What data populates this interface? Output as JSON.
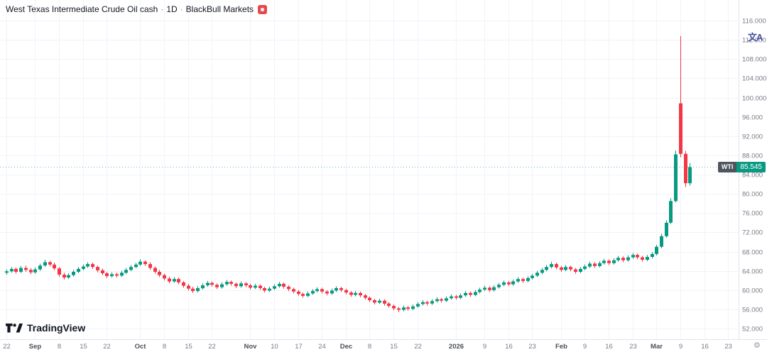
{
  "header": {
    "symbol": "West Texas Intermediate Crude Oil cash",
    "interval": "1D",
    "provider": "BlackBull Markets",
    "dot": "·"
  },
  "price_badge": {
    "symbol": "WTI",
    "price": "85.545"
  },
  "logo": {
    "text": "TradingView"
  },
  "icons": {
    "translate_glyph": "文A",
    "gear_glyph": "⚙"
  },
  "colors": {
    "up": "#089981",
    "down": "#F23645",
    "grid": "#f0f3fa",
    "axis_line": "#e0e3eb",
    "axis_text": "#787b86",
    "axis_text_major": "#4a4e57",
    "badge_symbol_bg": "#4f545e",
    "broker_logo_bg": "#e5484d",
    "translate_icon": "#44509e",
    "title_text": "#131722"
  },
  "chart_data": {
    "type": "candlestick",
    "title": "West Texas Intermediate Crude Oil cash",
    "interval": "1D",
    "provider": "BlackBull Markets",
    "last_price": 85.545,
    "grid": true,
    "y_axis": {
      "min": 52,
      "max": 116,
      "tick_step": 4,
      "tick_labels": [
        "116.000",
        "112.000",
        "108.000",
        "104.000",
        "100.000",
        "96.000",
        "92.000",
        "88.000",
        "84.000",
        "80.000",
        "76.000",
        "72.000",
        "68.000",
        "64.000",
        "60.000",
        "56.000",
        "52.000"
      ]
    },
    "x_axis": {
      "ticks": [
        {
          "i": 0,
          "label": "22",
          "major": false
        },
        {
          "i": 6,
          "label": "Sep",
          "major": true
        },
        {
          "i": 11,
          "label": "8",
          "major": false
        },
        {
          "i": 16,
          "label": "15",
          "major": false
        },
        {
          "i": 21,
          "label": "22",
          "major": false
        },
        {
          "i": 28,
          "label": "Oct",
          "major": true
        },
        {
          "i": 33,
          "label": "8",
          "major": false
        },
        {
          "i": 38,
          "label": "15",
          "major": false
        },
        {
          "i": 43,
          "label": "22",
          "major": false
        },
        {
          "i": 51,
          "label": "Nov",
          "major": true
        },
        {
          "i": 56,
          "label": "10",
          "major": false
        },
        {
          "i": 61,
          "label": "17",
          "major": false
        },
        {
          "i": 66,
          "label": "24",
          "major": false
        },
        {
          "i": 71,
          "label": "Dec",
          "major": true
        },
        {
          "i": 76,
          "label": "8",
          "major": false
        },
        {
          "i": 81,
          "label": "15",
          "major": false
        },
        {
          "i": 86,
          "label": "22",
          "major": false
        },
        {
          "i": 94,
          "label": "2026",
          "major": true
        },
        {
          "i": 100,
          "label": "9",
          "major": false
        },
        {
          "i": 105,
          "label": "16",
          "major": false
        },
        {
          "i": 110,
          "label": "23",
          "major": false
        },
        {
          "i": 116,
          "label": "Feb",
          "major": true
        },
        {
          "i": 121,
          "label": "9",
          "major": false
        },
        {
          "i": 126,
          "label": "16",
          "major": false
        },
        {
          "i": 131,
          "label": "23",
          "major": false
        },
        {
          "i": 136,
          "label": "Mar",
          "major": true
        },
        {
          "i": 141,
          "label": "9",
          "major": false
        },
        {
          "i": 146,
          "label": "16",
          "major": false
        },
        {
          "i": 151,
          "label": "23",
          "major": false
        }
      ]
    },
    "candles": [
      [
        63.6,
        64.3,
        63.2,
        63.9
      ],
      [
        63.9,
        64.8,
        63.6,
        64.4
      ],
      [
        64.4,
        64.7,
        63.4,
        63.8
      ],
      [
        63.8,
        65.0,
        63.5,
        64.6
      ],
      [
        64.6,
        65.1,
        63.8,
        64.2
      ],
      [
        64.2,
        64.6,
        63.3,
        63.7
      ],
      [
        63.7,
        64.7,
        63.4,
        64.3
      ],
      [
        64.3,
        65.5,
        64.0,
        65.1
      ],
      [
        65.1,
        66.3,
        64.8,
        65.8
      ],
      [
        65.8,
        66.1,
        64.9,
        65.3
      ],
      [
        65.3,
        65.7,
        64.1,
        64.5
      ],
      [
        64.5,
        64.8,
        62.8,
        63.2
      ],
      [
        63.2,
        63.6,
        62.2,
        62.6
      ],
      [
        62.6,
        63.5,
        62.3,
        63.1
      ],
      [
        63.1,
        64.2,
        62.8,
        63.8
      ],
      [
        63.8,
        64.8,
        63.5,
        64.4
      ],
      [
        64.4,
        65.3,
        64.1,
        64.9
      ],
      [
        64.9,
        65.8,
        64.6,
        65.4
      ],
      [
        65.4,
        65.7,
        64.4,
        64.8
      ],
      [
        64.8,
        65.1,
        63.7,
        64.1
      ],
      [
        64.1,
        64.5,
        63.1,
        63.5
      ],
      [
        63.5,
        63.8,
        62.5,
        62.9
      ],
      [
        62.9,
        63.7,
        62.6,
        63.3
      ],
      [
        63.3,
        63.6,
        62.6,
        63.0
      ],
      [
        63.0,
        64.0,
        62.7,
        63.6
      ],
      [
        63.6,
        64.6,
        63.3,
        64.2
      ],
      [
        64.2,
        65.2,
        63.9,
        64.8
      ],
      [
        64.8,
        65.7,
        64.5,
        65.3
      ],
      [
        65.3,
        66.4,
        65.0,
        65.9
      ],
      [
        65.9,
        66.2,
        65.0,
        65.4
      ],
      [
        65.4,
        65.8,
        64.2,
        64.6
      ],
      [
        64.6,
        64.9,
        63.4,
        63.8
      ],
      [
        63.8,
        64.2,
        62.7,
        63.1
      ],
      [
        63.1,
        63.4,
        62.0,
        62.4
      ],
      [
        62.4,
        62.8,
        61.4,
        61.8
      ],
      [
        61.8,
        62.7,
        61.5,
        62.3
      ],
      [
        62.3,
        62.6,
        61.2,
        61.6
      ],
      [
        61.6,
        61.9,
        60.5,
        60.9
      ],
      [
        60.9,
        61.3,
        59.9,
        60.3
      ],
      [
        60.3,
        60.7,
        59.4,
        59.8
      ],
      [
        59.8,
        60.8,
        59.5,
        60.4
      ],
      [
        60.4,
        61.4,
        60.1,
        61.0
      ],
      [
        61.0,
        61.9,
        60.7,
        61.5
      ],
      [
        61.5,
        61.8,
        60.7,
        61.1
      ],
      [
        61.1,
        61.4,
        60.2,
        60.6
      ],
      [
        60.6,
        61.6,
        60.3,
        61.2
      ],
      [
        61.2,
        62.1,
        60.9,
        61.7
      ],
      [
        61.7,
        62.0,
        60.9,
        61.3
      ],
      [
        61.3,
        61.6,
        60.4,
        60.8
      ],
      [
        60.8,
        61.8,
        60.5,
        61.4
      ],
      [
        61.4,
        61.7,
        60.6,
        61.0
      ],
      [
        61.0,
        61.3,
        60.1,
        60.5
      ],
      [
        60.5,
        61.3,
        60.2,
        60.9
      ],
      [
        60.9,
        61.2,
        60.0,
        60.4
      ],
      [
        60.4,
        60.7,
        59.5,
        59.9
      ],
      [
        59.9,
        60.7,
        59.6,
        60.3
      ],
      [
        60.3,
        61.2,
        60.0,
        60.8
      ],
      [
        60.8,
        61.7,
        60.5,
        61.3
      ],
      [
        61.3,
        61.6,
        60.3,
        60.7
      ],
      [
        60.7,
        61.0,
        59.8,
        60.2
      ],
      [
        60.2,
        60.5,
        59.3,
        59.7
      ],
      [
        59.7,
        60.0,
        58.8,
        59.2
      ],
      [
        59.2,
        59.5,
        58.4,
        58.8
      ],
      [
        58.8,
        59.7,
        58.5,
        59.3
      ],
      [
        59.3,
        60.2,
        59.0,
        59.8
      ],
      [
        59.8,
        60.6,
        59.5,
        60.2
      ],
      [
        60.2,
        60.5,
        59.3,
        59.7
      ],
      [
        59.7,
        60.0,
        58.9,
        59.3
      ],
      [
        59.3,
        60.3,
        59.0,
        59.9
      ],
      [
        59.9,
        60.8,
        59.6,
        60.4
      ],
      [
        60.4,
        60.7,
        59.6,
        60.0
      ],
      [
        60.0,
        60.3,
        59.1,
        59.5
      ],
      [
        59.5,
        59.8,
        58.6,
        59.0
      ],
      [
        59.0,
        59.8,
        58.7,
        59.4
      ],
      [
        59.4,
        59.7,
        58.5,
        58.9
      ],
      [
        58.9,
        59.2,
        58.0,
        58.4
      ],
      [
        58.4,
        58.7,
        57.5,
        57.9
      ],
      [
        57.9,
        58.2,
        57.0,
        57.4
      ],
      [
        57.4,
        58.2,
        57.1,
        57.8
      ],
      [
        57.8,
        58.1,
        56.8,
        57.2
      ],
      [
        57.2,
        57.5,
        56.3,
        56.7
      ],
      [
        56.7,
        57.0,
        55.8,
        56.2
      ],
      [
        56.2,
        56.5,
        55.4,
        55.9
      ],
      [
        55.9,
        56.8,
        55.6,
        56.4
      ],
      [
        56.4,
        56.7,
        55.7,
        56.1
      ],
      [
        56.1,
        57.0,
        55.8,
        56.6
      ],
      [
        56.6,
        57.5,
        56.3,
        57.1
      ],
      [
        57.1,
        57.9,
        56.8,
        57.5
      ],
      [
        57.5,
        57.8,
        56.8,
        57.2
      ],
      [
        57.2,
        58.1,
        56.9,
        57.7
      ],
      [
        57.7,
        58.5,
        57.4,
        58.1
      ],
      [
        58.1,
        58.4,
        57.4,
        57.8
      ],
      [
        57.8,
        58.7,
        57.5,
        58.3
      ],
      [
        58.3,
        59.1,
        58.0,
        58.7
      ],
      [
        58.7,
        59.0,
        58.0,
        58.4
      ],
      [
        58.4,
        59.3,
        58.1,
        58.9
      ],
      [
        58.9,
        59.8,
        58.6,
        59.4
      ],
      [
        59.4,
        59.7,
        58.6,
        59.0
      ],
      [
        59.0,
        60.0,
        58.7,
        59.6
      ],
      [
        59.6,
        60.5,
        59.3,
        60.1
      ],
      [
        60.1,
        60.9,
        59.8,
        60.5
      ],
      [
        60.5,
        60.8,
        59.6,
        60.0
      ],
      [
        60.0,
        61.0,
        59.7,
        60.6
      ],
      [
        60.6,
        61.5,
        60.3,
        61.1
      ],
      [
        61.1,
        62.0,
        60.8,
        61.6
      ],
      [
        61.6,
        61.9,
        60.8,
        61.2
      ],
      [
        61.2,
        62.2,
        60.9,
        61.8
      ],
      [
        61.8,
        62.7,
        61.5,
        62.3
      ],
      [
        62.3,
        62.6,
        61.5,
        61.9
      ],
      [
        61.9,
        62.9,
        61.6,
        62.5
      ],
      [
        62.5,
        63.4,
        62.2,
        63.0
      ],
      [
        63.0,
        64.0,
        62.7,
        63.6
      ],
      [
        63.6,
        64.6,
        63.3,
        64.2
      ],
      [
        64.2,
        65.2,
        63.9,
        64.8
      ],
      [
        64.8,
        65.9,
        64.5,
        65.4
      ],
      [
        65.4,
        65.7,
        64.3,
        64.7
      ],
      [
        64.7,
        65.0,
        63.8,
        64.2
      ],
      [
        64.2,
        65.2,
        63.9,
        64.8
      ],
      [
        64.8,
        65.1,
        63.9,
        64.3
      ],
      [
        64.3,
        64.6,
        63.4,
        63.8
      ],
      [
        63.8,
        64.8,
        63.5,
        64.4
      ],
      [
        64.4,
        65.3,
        64.1,
        64.9
      ],
      [
        64.9,
        65.9,
        64.6,
        65.5
      ],
      [
        65.5,
        65.8,
        64.6,
        65.0
      ],
      [
        65.0,
        66.0,
        64.7,
        65.6
      ],
      [
        65.6,
        66.5,
        65.3,
        66.1
      ],
      [
        66.1,
        66.4,
        65.2,
        65.6
      ],
      [
        65.6,
        66.6,
        65.3,
        66.2
      ],
      [
        66.2,
        67.1,
        65.9,
        66.7
      ],
      [
        66.7,
        67.0,
        65.8,
        66.2
      ],
      [
        66.2,
        67.2,
        65.9,
        66.8
      ],
      [
        66.8,
        67.7,
        66.5,
        67.3
      ],
      [
        67.3,
        67.6,
        66.4,
        66.8
      ],
      [
        66.8,
        67.1,
        65.9,
        66.3
      ],
      [
        66.3,
        67.3,
        66.0,
        66.9
      ],
      [
        66.9,
        67.9,
        66.6,
        67.5
      ],
      [
        67.5,
        69.4,
        67.2,
        69.0
      ],
      [
        69.0,
        71.7,
        68.7,
        71.2
      ],
      [
        71.2,
        74.5,
        70.9,
        74.0
      ],
      [
        74.0,
        79.1,
        73.7,
        78.5
      ],
      [
        78.5,
        89.0,
        78.2,
        88.2
      ],
      [
        98.8,
        112.8,
        87.6,
        88.3
      ],
      [
        88.3,
        88.9,
        81.4,
        82.2
      ],
      [
        82.2,
        86.4,
        81.7,
        85.545
      ]
    ]
  }
}
